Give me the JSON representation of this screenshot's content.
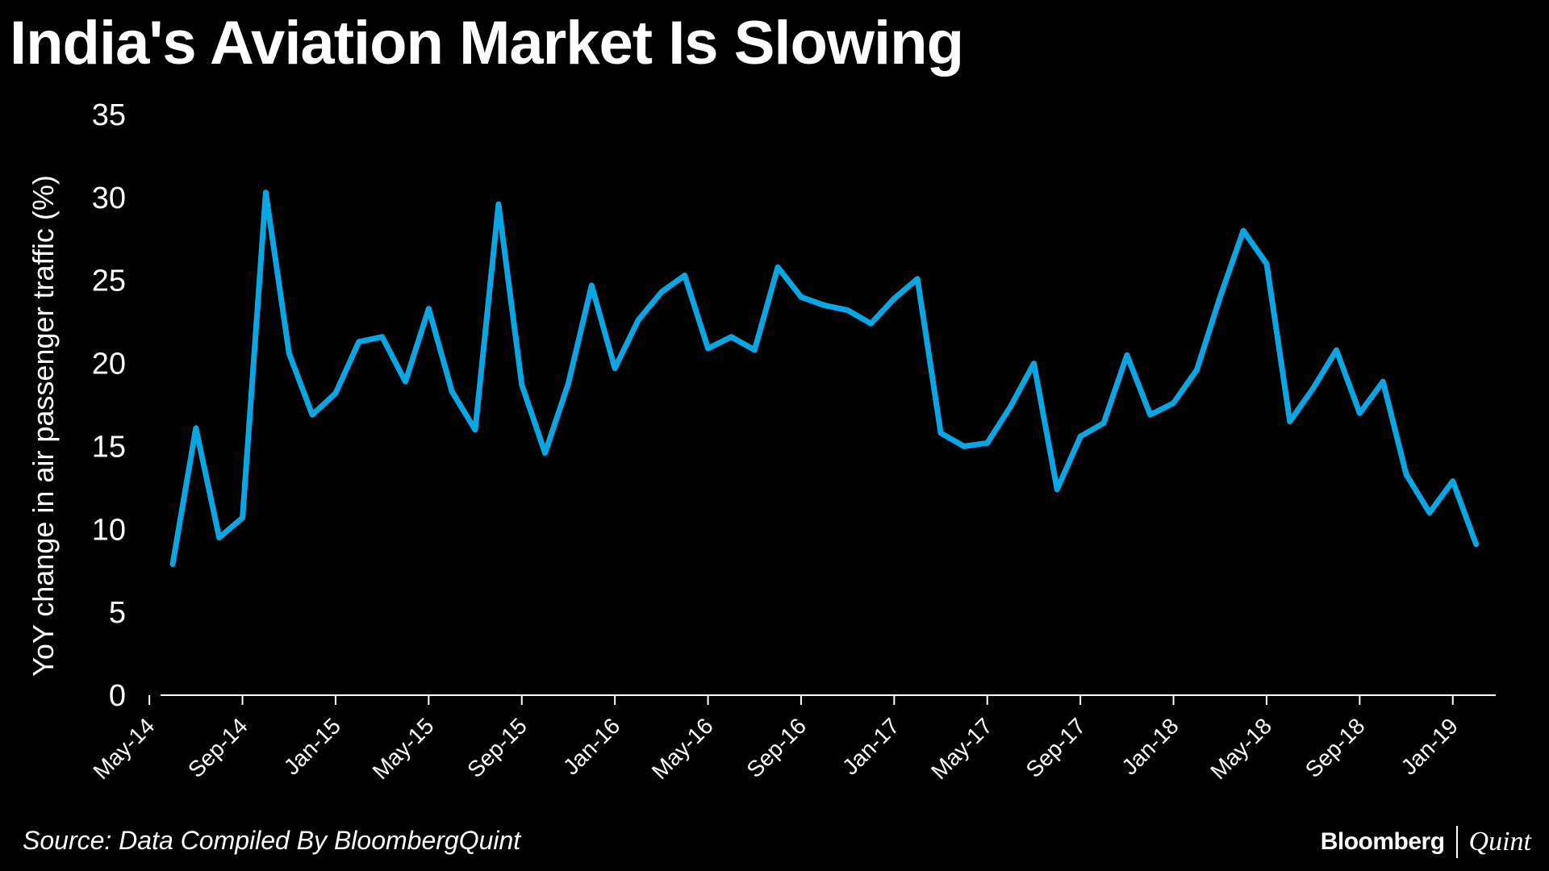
{
  "chart_data": {
    "type": "line",
    "title": "India's Aviation Market Is Slowing",
    "ylabel": "YoY change in air passenger traffic (%)",
    "xlabel": "",
    "ylim": [
      0,
      35
    ],
    "yticks": [
      0,
      5,
      10,
      15,
      20,
      25,
      30,
      35
    ],
    "xtick_labels": [
      "May-14",
      "Sep-14",
      "Jan-15",
      "May-15",
      "Sep-15",
      "Jan-16",
      "May-16",
      "Sep-16",
      "Jan-17",
      "May-17",
      "Sep-17",
      "Jan-18",
      "May-18",
      "Sep-18",
      "Jan-19"
    ],
    "line_color": "#0aa6e4",
    "series": [
      {
        "name": "YoY change in air passenger traffic (%)",
        "x": [
          "Jun-14",
          "Jul-14",
          "Aug-14",
          "Sep-14",
          "Oct-14",
          "Nov-14",
          "Dec-14",
          "Jan-15",
          "Feb-15",
          "Mar-15",
          "Apr-15",
          "May-15",
          "Jun-15",
          "Jul-15",
          "Aug-15",
          "Sep-15",
          "Oct-15",
          "Nov-15",
          "Dec-15",
          "Jan-16",
          "Feb-16",
          "Mar-16",
          "Apr-16",
          "May-16",
          "Jun-16",
          "Jul-16",
          "Aug-16",
          "Sep-16",
          "Oct-16",
          "Nov-16",
          "Dec-16",
          "Jan-17",
          "Feb-17",
          "Mar-17",
          "Apr-17",
          "May-17",
          "Jun-17",
          "Jul-17",
          "Aug-17",
          "Sep-17",
          "Oct-17",
          "Nov-17",
          "Dec-17",
          "Jan-18",
          "Feb-18",
          "Mar-18",
          "Apr-18",
          "May-18",
          "Jun-18",
          "Jul-18",
          "Aug-18",
          "Sep-18",
          "Oct-18",
          "Nov-18",
          "Dec-18",
          "Jan-19",
          "Feb-19"
        ],
        "values": [
          7.9,
          16.1,
          9.5,
          10.7,
          30.3,
          20.6,
          16.9,
          18.2,
          21.3,
          21.6,
          18.9,
          23.3,
          18.3,
          16.0,
          29.6,
          18.7,
          14.6,
          18.8,
          24.7,
          19.7,
          22.6,
          24.3,
          25.3,
          20.9,
          21.6,
          20.8,
          25.8,
          24.0,
          23.5,
          23.2,
          22.4,
          23.9,
          25.1,
          15.8,
          15.0,
          15.2,
          17.4,
          20.0,
          12.4,
          15.6,
          16.4,
          20.5,
          16.9,
          17.6,
          19.6,
          24.0,
          28.0,
          26.0,
          16.5,
          18.5,
          20.8,
          17.0,
          18.9,
          13.3,
          11.0,
          12.9,
          9.1
        ]
      }
    ]
  },
  "source": "Source: Data Compiled By BloombergQuint",
  "brand": {
    "primary": "Bloomberg",
    "secondary": "Quint"
  }
}
